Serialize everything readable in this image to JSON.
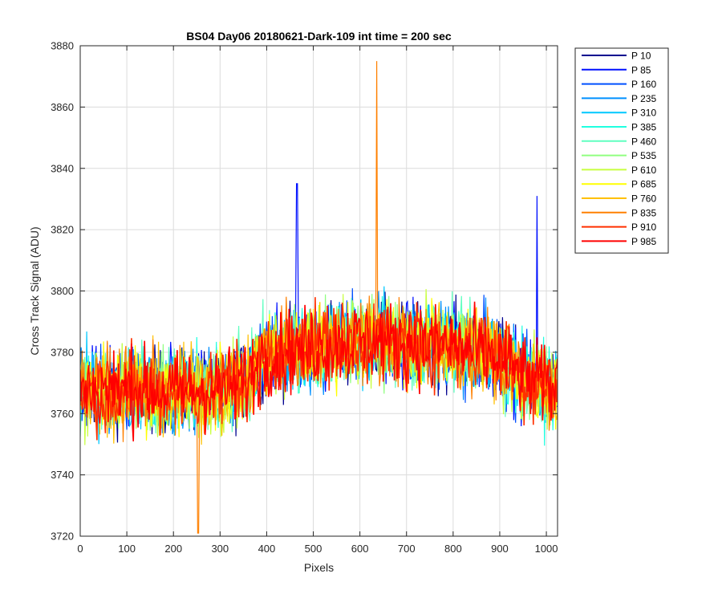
{
  "chart_data": {
    "type": "line",
    "title": "BS04 Day06 20180621-Dark-109 int time = 200 sec",
    "xlabel": "Pixels",
    "ylabel": "Cross Track Signal (ADU)",
    "xlim": [
      0,
      1024
    ],
    "ylim": [
      3720,
      3880
    ],
    "xticks": [
      "0",
      "100",
      "200",
      "300",
      "400",
      "500",
      "600",
      "700",
      "800",
      "900",
      "1000"
    ],
    "yticks": [
      "3720",
      "3740",
      "3760",
      "3780",
      "3800",
      "3820",
      "3840",
      "3860",
      "3880"
    ],
    "grid": true,
    "legend_position": "outside-top-right",
    "baseline_profile": {
      "x": [
        0,
        100,
        200,
        300,
        350,
        400,
        500,
        600,
        700,
        800,
        900,
        950,
        1024
      ],
      "y": [
        3768,
        3768,
        3767,
        3768,
        3770,
        3779,
        3782,
        3784,
        3783,
        3782,
        3778,
        3772,
        3768
      ]
    },
    "noise_amplitude_adu": 12,
    "notable_points": [
      {
        "series": "P 835",
        "x": 636,
        "y": 3875
      },
      {
        "series": "P 85",
        "x": 465,
        "y": 3835
      },
      {
        "series": "P 85",
        "x": 980,
        "y": 3831
      },
      {
        "series": "P 835",
        "x": 253,
        "y": 3721
      }
    ],
    "series": [
      {
        "name": "P 10",
        "color": "#00008f"
      },
      {
        "name": "P 85",
        "color": "#0010ff"
      },
      {
        "name": "P 160",
        "color": "#0050ff"
      },
      {
        "name": "P 235",
        "color": "#0090ff"
      },
      {
        "name": "P 310",
        "color": "#00c8ff"
      },
      {
        "name": "P 385",
        "color": "#20ffe0"
      },
      {
        "name": "P 460",
        "color": "#60ffc0"
      },
      {
        "name": "P 535",
        "color": "#90ff80"
      },
      {
        "name": "P 610",
        "color": "#c8ff40"
      },
      {
        "name": "P 685",
        "color": "#ffff00"
      },
      {
        "name": "P 760",
        "color": "#ffc000"
      },
      {
        "name": "P 835",
        "color": "#ff8000"
      },
      {
        "name": "P 910",
        "color": "#ff3000"
      },
      {
        "name": "P 985",
        "color": "#ff0000"
      }
    ]
  }
}
